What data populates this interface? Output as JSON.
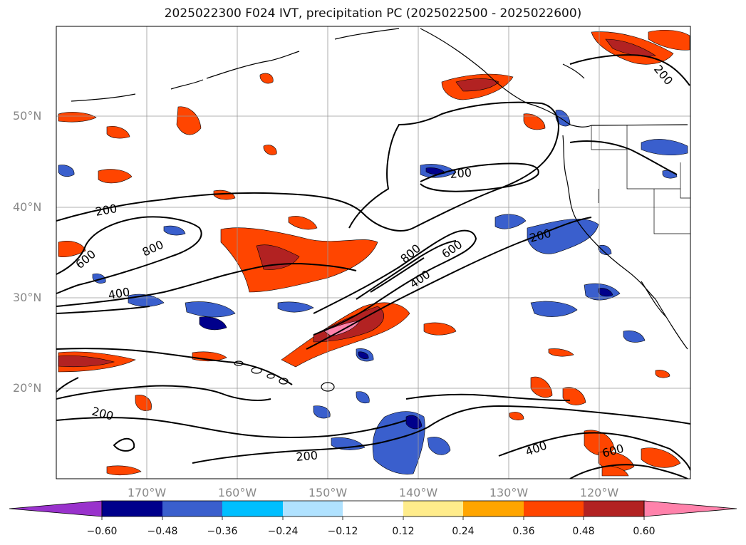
{
  "title": "2025022300 F024 IVT, precipitation PC (2025022500 - 2025022600)",
  "map": {
    "lat_labels": [
      "50°N",
      "40°N",
      "30°N",
      "20°N"
    ],
    "lon_labels": [
      "170°W",
      "160°W",
      "150°W",
      "140°W",
      "130°W",
      "120°W"
    ],
    "contour_labels": [
      "200",
      "200",
      "200",
      "200",
      "200",
      "200",
      "400",
      "400",
      "400",
      "600",
      "600",
      "600",
      "800",
      "800"
    ]
  },
  "colorbar": {
    "ticks": [
      "−0.60",
      "−0.48",
      "−0.36",
      "−0.24",
      "−0.12",
      "0.12",
      "0.24",
      "0.36",
      "0.48",
      "0.60"
    ],
    "colors": [
      "#9932cc",
      "#00008b",
      "#3a5fcd",
      "#00bfff",
      "#b0e2ff",
      "#ffffff",
      "#ffec8b",
      "#ffa500",
      "#ff4500",
      "#b22222",
      "#ff82ab",
      "#ff82ab"
    ]
  }
}
